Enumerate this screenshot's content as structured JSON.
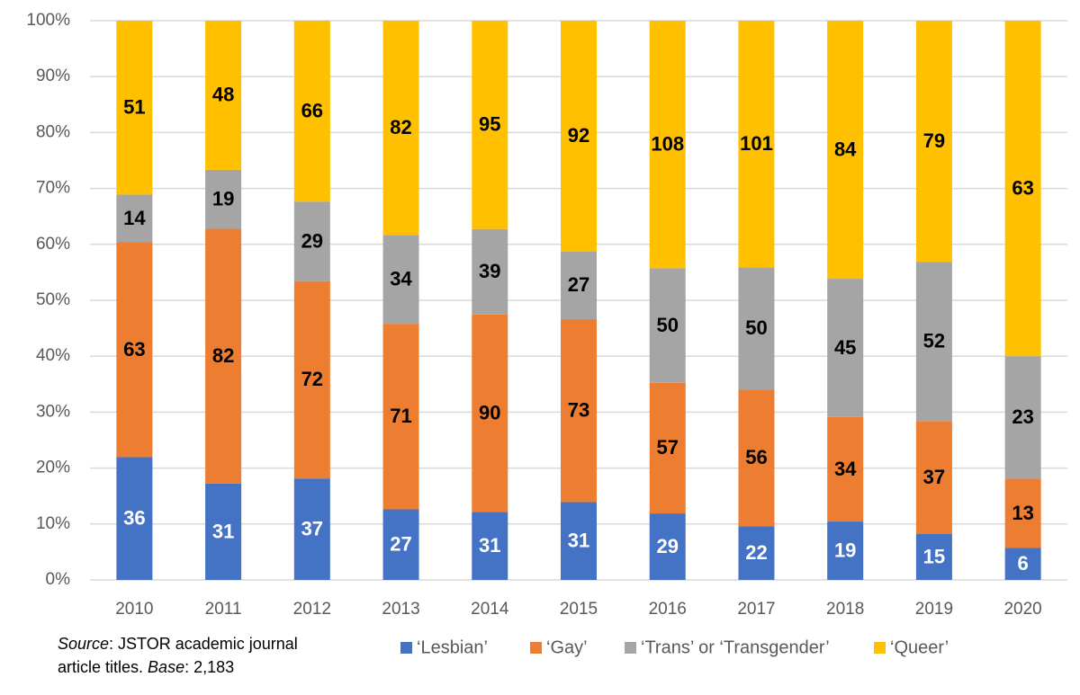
{
  "chart_data": {
    "type": "bar",
    "stack": "percent",
    "categories": [
      "2010",
      "2011",
      "2012",
      "2013",
      "2014",
      "2015",
      "2016",
      "2017",
      "2018",
      "2019",
      "2020"
    ],
    "series": [
      {
        "name": "‘Lesbian’",
        "color": "#4472c4",
        "label_color": "#ffffff",
        "values": [
          36,
          31,
          37,
          27,
          31,
          31,
          29,
          22,
          19,
          15,
          6
        ]
      },
      {
        "name": "‘Gay’",
        "color": "#ed7d31",
        "label_color": "#000000",
        "values": [
          63,
          82,
          72,
          71,
          90,
          73,
          57,
          56,
          34,
          37,
          13
        ]
      },
      {
        "name": "‘Trans’ or ‘Transgender’",
        "color": "#a5a5a5",
        "label_color": "#000000",
        "values": [
          14,
          19,
          29,
          34,
          39,
          27,
          50,
          50,
          45,
          52,
          23
        ]
      },
      {
        "name": "‘Queer’",
        "color": "#ffc000",
        "label_color": "#000000",
        "values": [
          51,
          48,
          66,
          82,
          95,
          92,
          108,
          101,
          84,
          79,
          63
        ]
      }
    ],
    "ylim": [
      0,
      100
    ],
    "yticks": [
      {
        "value": 0,
        "label": "0%"
      },
      {
        "value": 10,
        "label": "10%"
      },
      {
        "value": 20,
        "label": "20%"
      },
      {
        "value": 30,
        "label": "30%"
      },
      {
        "value": 40,
        "label": "40%"
      },
      {
        "value": 50,
        "label": "50%"
      },
      {
        "value": 60,
        "label": "60%"
      },
      {
        "value": 70,
        "label": "70%"
      },
      {
        "value": 80,
        "label": "80%"
      },
      {
        "value": 90,
        "label": "90%"
      },
      {
        "value": 100,
        "label": "100%"
      }
    ],
    "grid": true,
    "legend": "bottom",
    "note": {
      "source_label": "Source",
      "source_text": ": JSTOR academic journal article titles.",
      "base_label": "Base",
      "base_text": ": 2,183"
    }
  }
}
